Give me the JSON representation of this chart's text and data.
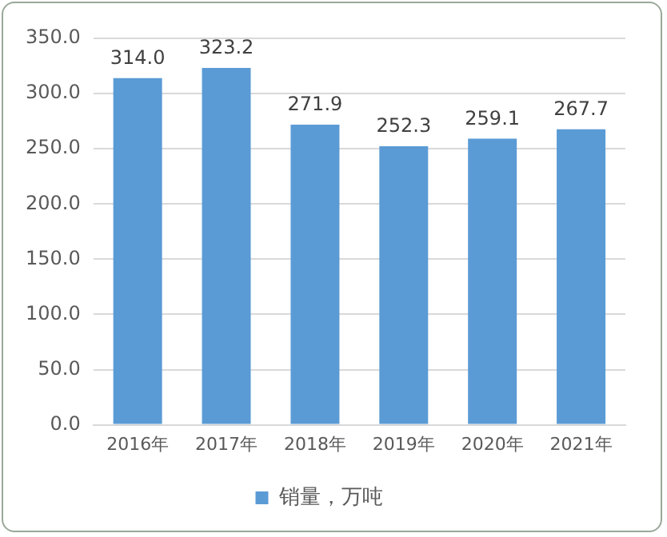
{
  "chart_data": {
    "type": "bar",
    "categories": [
      "2016年",
      "2017年",
      "2018年",
      "2019年",
      "2020年",
      "2021年"
    ],
    "series": [
      {
        "name": "销量，万吨",
        "color": "#5b9bd5",
        "values": [
          314.0,
          323.2,
          271.9,
          252.3,
          259.1,
          267.7
        ],
        "value_labels": [
          "314.0",
          "323.2",
          "271.9",
          "252.3",
          "259.1",
          "267.7"
        ]
      }
    ],
    "ylim": [
      0,
      350
    ],
    "yticks": [
      {
        "value": 0,
        "label": "0.0"
      },
      {
        "value": 50,
        "label": "50.0"
      },
      {
        "value": 100,
        "label": "100.0"
      },
      {
        "value": 150,
        "label": "150.0"
      },
      {
        "value": 200,
        "label": "200.0"
      },
      {
        "value": 250,
        "label": "250.0"
      },
      {
        "value": 300,
        "label": "300.0"
      },
      {
        "value": 350,
        "label": "350.0"
      }
    ],
    "grid": "y",
    "legend": "bottom"
  }
}
